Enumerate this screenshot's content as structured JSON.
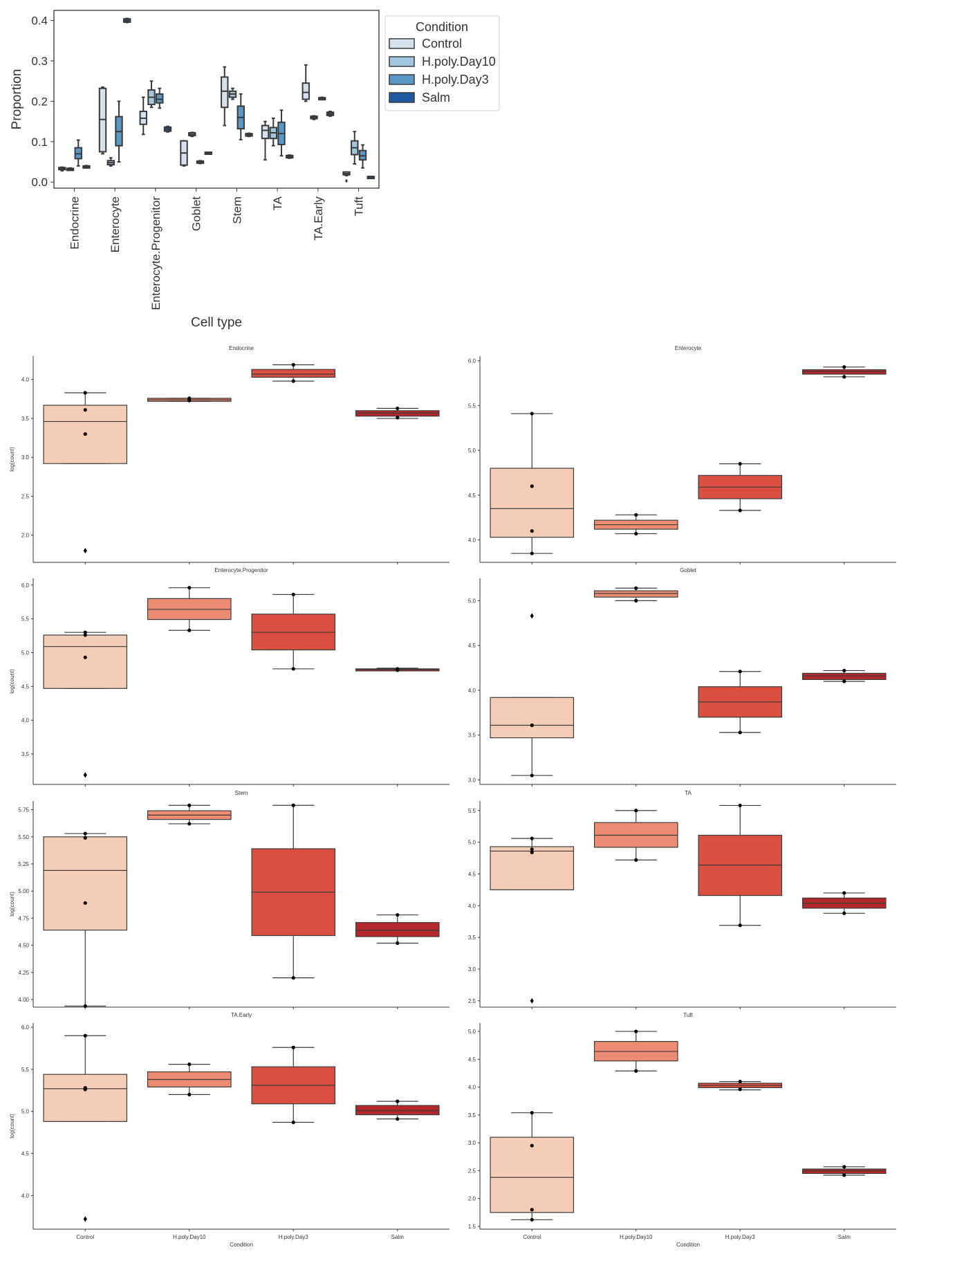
{
  "chart_data": [
    {
      "type": "box",
      "id": "proportion-overview",
      "title": "",
      "xlabel": "Cell type",
      "ylabel": "Proportion",
      "ylim": [
        -0.015,
        0.425
      ],
      "yticks": [
        "0.0",
        "0.1",
        "0.2",
        "0.3",
        "0.4"
      ],
      "categories": [
        "Endocrine",
        "Enterocyte",
        "Enterocyte.Progenitor",
        "Goblet",
        "Stem",
        "TA",
        "TA.Early",
        "Tuft"
      ],
      "legend": {
        "title": "Condition",
        "placement": "right"
      },
      "series": [
        {
          "name": "Control",
          "color": "#d4e1ef",
          "boxes": [
            {
              "q1": 0.031,
              "med": 0.033,
              "q3": 0.036,
              "lo": 0.028,
              "hi": 0.037,
              "outliers": []
            },
            {
              "q1": 0.075,
              "med": 0.155,
              "q3": 0.232,
              "lo": 0.07,
              "hi": 0.235,
              "outliers": []
            },
            {
              "q1": 0.143,
              "med": 0.158,
              "q3": 0.175,
              "lo": 0.118,
              "hi": 0.21,
              "outliers": []
            },
            {
              "q1": 0.042,
              "med": 0.072,
              "q3": 0.102,
              "lo": 0.04,
              "hi": 0.102,
              "outliers": []
            },
            {
              "q1": 0.185,
              "med": 0.225,
              "q3": 0.26,
              "lo": 0.14,
              "hi": 0.285,
              "outliers": []
            },
            {
              "q1": 0.108,
              "med": 0.128,
              "q3": 0.14,
              "lo": 0.055,
              "hi": 0.15,
              "outliers": []
            },
            {
              "q1": 0.205,
              "med": 0.222,
              "q3": 0.245,
              "lo": 0.2,
              "hi": 0.29,
              "outliers": []
            },
            {
              "q1": 0.018,
              "med": 0.021,
              "q3": 0.025,
              "lo": 0.016,
              "hi": 0.025,
              "outliers": [
                0.003
              ]
            }
          ]
        },
        {
          "name": "H.poly.Day10",
          "color": "#a1c6dd",
          "boxes": [
            {
              "q1": 0.031,
              "med": 0.032,
              "q3": 0.034,
              "lo": 0.03,
              "hi": 0.035,
              "outliers": []
            },
            {
              "q1": 0.043,
              "med": 0.048,
              "q3": 0.053,
              "lo": 0.04,
              "hi": 0.06,
              "outliers": []
            },
            {
              "q1": 0.192,
              "med": 0.21,
              "q3": 0.228,
              "lo": 0.185,
              "hi": 0.25,
              "outliers": []
            },
            {
              "q1": 0.115,
              "med": 0.118,
              "q3": 0.122,
              "lo": 0.113,
              "hi": 0.123,
              "outliers": []
            },
            {
              "q1": 0.21,
              "med": 0.218,
              "q3": 0.225,
              "lo": 0.205,
              "hi": 0.232,
              "outliers": []
            },
            {
              "q1": 0.108,
              "med": 0.122,
              "q3": 0.135,
              "lo": 0.09,
              "hi": 0.158,
              "outliers": []
            },
            {
              "q1": 0.157,
              "med": 0.16,
              "q3": 0.163,
              "lo": 0.155,
              "hi": 0.164,
              "outliers": []
            },
            {
              "q1": 0.068,
              "med": 0.085,
              "q3": 0.102,
              "lo": 0.045,
              "hi": 0.125,
              "outliers": []
            }
          ]
        },
        {
          "name": "H.poly.Day3",
          "color": "#5997c6",
          "boxes": [
            {
              "q1": 0.058,
              "med": 0.07,
              "q3": 0.085,
              "lo": 0.04,
              "hi": 0.104,
              "outliers": []
            },
            {
              "q1": 0.09,
              "med": 0.125,
              "q3": 0.162,
              "lo": 0.05,
              "hi": 0.2,
              "outliers": []
            },
            {
              "q1": 0.196,
              "med": 0.205,
              "q3": 0.218,
              "lo": 0.183,
              "hi": 0.232,
              "outliers": []
            },
            {
              "q1": 0.047,
              "med": 0.049,
              "q3": 0.052,
              "lo": 0.046,
              "hi": 0.053,
              "outliers": []
            },
            {
              "q1": 0.132,
              "med": 0.16,
              "q3": 0.188,
              "lo": 0.105,
              "hi": 0.218,
              "outliers": []
            },
            {
              "q1": 0.093,
              "med": 0.12,
              "q3": 0.148,
              "lo": 0.065,
              "hi": 0.178,
              "outliers": []
            },
            {
              "q1": 0.205,
              "med": 0.207,
              "q3": 0.209,
              "lo": 0.204,
              "hi": 0.21,
              "outliers": []
            },
            {
              "q1": 0.055,
              "med": 0.065,
              "q3": 0.078,
              "lo": 0.035,
              "hi": 0.092,
              "outliers": []
            }
          ]
        },
        {
          "name": "Salm",
          "color": "#1f5a9e",
          "boxes": [
            {
              "q1": 0.036,
              "med": 0.038,
              "q3": 0.04,
              "lo": 0.035,
              "hi": 0.041,
              "outliers": []
            },
            {
              "q1": 0.396,
              "med": 0.4,
              "q3": 0.404,
              "lo": 0.395,
              "hi": 0.405,
              "outliers": []
            },
            {
              "q1": 0.126,
              "med": 0.131,
              "q3": 0.136,
              "lo": 0.124,
              "hi": 0.138,
              "outliers": []
            },
            {
              "q1": 0.072,
              "med": 0.073,
              "q3": 0.074,
              "lo": 0.072,
              "hi": 0.074,
              "outliers": []
            },
            {
              "q1": 0.114,
              "med": 0.117,
              "q3": 0.12,
              "lo": 0.113,
              "hi": 0.121,
              "outliers": []
            },
            {
              "q1": 0.06,
              "med": 0.063,
              "q3": 0.066,
              "lo": 0.059,
              "hi": 0.067,
              "outliers": []
            },
            {
              "q1": 0.165,
              "med": 0.169,
              "q3": 0.173,
              "lo": 0.163,
              "hi": 0.175,
              "outliers": []
            },
            {
              "q1": 0.012,
              "med": 0.013,
              "q3": 0.014,
              "lo": 0.012,
              "hi": 0.014,
              "outliers": []
            }
          ]
        }
      ]
    },
    {
      "type": "box-grid",
      "id": "logcount-by-condition",
      "xlabel": "Condition",
      "ylabel": "log(count)",
      "categories": [
        "Control",
        "H.poly.Day10",
        "H.poly.Day3",
        "Salm"
      ],
      "colors": [
        "#f4cdb8",
        "#ec8c72",
        "#db4f41",
        "#b4282b"
      ],
      "panels": [
        {
          "title": "Endocrine",
          "ylim": [
            1.65,
            4.3
          ],
          "yticks": [
            "2.0",
            "2.5",
            "3.0",
            "3.5",
            "4.0"
          ],
          "boxes": [
            {
              "q1": 2.92,
              "med": 3.46,
              "q3": 3.67,
              "lo": 2.92,
              "hi": 3.83,
              "points": [
                3.83,
                3.61,
                3.3
              ],
              "outliers": [
                1.8
              ]
            },
            {
              "q1": 3.72,
              "med": 3.74,
              "q3": 3.76,
              "lo": 3.72,
              "hi": 3.76,
              "points": [
                3.76,
                3.73
              ],
              "outliers": []
            },
            {
              "q1": 4.03,
              "med": 4.07,
              "q3": 4.13,
              "lo": 3.98,
              "hi": 4.19,
              "points": [
                4.19,
                3.98
              ],
              "outliers": []
            },
            {
              "q1": 3.53,
              "med": 3.57,
              "q3": 3.6,
              "lo": 3.5,
              "hi": 3.63,
              "points": [
                3.63,
                3.51
              ],
              "outliers": []
            }
          ]
        },
        {
          "title": "Enterocyte",
          "ylim": [
            3.75,
            6.05
          ],
          "yticks": [
            "4.0",
            "4.5",
            "5.0",
            "5.5",
            "6.0"
          ],
          "boxes": [
            {
              "q1": 4.03,
              "med": 4.35,
              "q3": 4.8,
              "lo": 3.85,
              "hi": 5.41,
              "points": [
                5.41,
                4.6,
                4.1,
                3.85
              ],
              "outliers": []
            },
            {
              "q1": 4.12,
              "med": 4.17,
              "q3": 4.22,
              "lo": 4.07,
              "hi": 4.28,
              "points": [
                4.28,
                4.07
              ],
              "outliers": []
            },
            {
              "q1": 4.46,
              "med": 4.59,
              "q3": 4.72,
              "lo": 4.33,
              "hi": 4.85,
              "points": [
                4.85,
                4.33
              ],
              "outliers": []
            },
            {
              "q1": 5.85,
              "med": 5.88,
              "q3": 5.9,
              "lo": 5.82,
              "hi": 5.93,
              "points": [
                5.93,
                5.82
              ],
              "outliers": []
            }
          ]
        },
        {
          "title": "Enterocyte.Progenitor",
          "ylim": [
            3.05,
            6.1
          ],
          "yticks": [
            "3.5",
            "4.0",
            "4.5",
            "5.0",
            "5.5",
            "6.0"
          ],
          "boxes": [
            {
              "q1": 4.47,
              "med": 5.09,
              "q3": 5.26,
              "lo": 4.47,
              "hi": 5.3,
              "points": [
                5.3,
                5.26,
                4.93
              ],
              "outliers": [
                3.19
              ]
            },
            {
              "q1": 5.49,
              "med": 5.64,
              "q3": 5.8,
              "lo": 5.33,
              "hi": 5.96,
              "points": [
                5.96,
                5.33
              ],
              "outliers": []
            },
            {
              "q1": 5.04,
              "med": 5.3,
              "q3": 5.57,
              "lo": 4.76,
              "hi": 5.86,
              "points": [
                5.86,
                4.76
              ],
              "outliers": []
            },
            {
              "q1": 4.74,
              "med": 4.75,
              "q3": 4.76,
              "lo": 4.73,
              "hi": 4.77,
              "points": [
                4.76,
                4.74
              ],
              "outliers": []
            }
          ]
        },
        {
          "title": "Goblet",
          "ylim": [
            2.95,
            5.25
          ],
          "yticks": [
            "3.0",
            "3.5",
            "4.0",
            "4.5",
            "5.0"
          ],
          "boxes": [
            {
              "q1": 3.47,
              "med": 3.61,
              "q3": 3.92,
              "lo": 3.05,
              "hi": 3.92,
              "points": [
                3.61,
                3.61,
                3.05
              ],
              "outliers": [
                4.83
              ]
            },
            {
              "q1": 5.04,
              "med": 5.08,
              "q3": 5.11,
              "lo": 5.0,
              "hi": 5.14,
              "points": [
                5.14,
                5.0
              ],
              "outliers": []
            },
            {
              "q1": 3.7,
              "med": 3.87,
              "q3": 4.04,
              "lo": 3.53,
              "hi": 4.21,
              "points": [
                4.21,
                3.53
              ],
              "outliers": []
            },
            {
              "q1": 4.12,
              "med": 4.16,
              "q3": 4.19,
              "lo": 4.1,
              "hi": 4.22,
              "points": [
                4.22,
                4.1
              ],
              "outliers": []
            }
          ]
        },
        {
          "title": "Stem",
          "ylim": [
            3.93,
            5.83
          ],
          "yticks": [
            "4.00",
            "4.25",
            "4.50",
            "4.75",
            "5.00",
            "5.25",
            "5.50",
            "5.75"
          ],
          "boxes": [
            {
              "q1": 4.64,
              "med": 5.19,
              "q3": 5.5,
              "lo": 3.94,
              "hi": 5.53,
              "points": [
                5.53,
                5.49,
                4.89,
                3.94
              ],
              "outliers": []
            },
            {
              "q1": 5.66,
              "med": 5.7,
              "q3": 5.74,
              "lo": 5.62,
              "hi": 5.79,
              "points": [
                5.79,
                5.62
              ],
              "outliers": []
            },
            {
              "q1": 4.59,
              "med": 4.99,
              "q3": 5.39,
              "lo": 4.2,
              "hi": 5.79,
              "points": [
                5.79,
                4.2
              ],
              "outliers": []
            },
            {
              "q1": 4.58,
              "med": 4.64,
              "q3": 4.71,
              "lo": 4.52,
              "hi": 4.78,
              "points": [
                4.78,
                4.52
              ],
              "outliers": []
            }
          ]
        },
        {
          "title": "TA",
          "ylim": [
            2.4,
            5.65
          ],
          "yticks": [
            "2.5",
            "3.0",
            "3.5",
            "4.0",
            "4.5",
            "5.0",
            "5.5"
          ],
          "boxes": [
            {
              "q1": 4.25,
              "med": 4.86,
              "q3": 4.93,
              "lo": 4.25,
              "hi": 5.06,
              "points": [
                5.06,
                4.89,
                4.84
              ],
              "outliers": [
                2.5
              ]
            },
            {
              "q1": 4.92,
              "med": 5.11,
              "q3": 5.31,
              "lo": 4.72,
              "hi": 5.5,
              "points": [
                5.5,
                4.72
              ],
              "outliers": []
            },
            {
              "q1": 4.16,
              "med": 4.64,
              "q3": 5.11,
              "lo": 3.69,
              "hi": 5.58,
              "points": [
                5.58,
                3.69
              ],
              "outliers": []
            },
            {
              "q1": 3.96,
              "med": 4.04,
              "q3": 4.12,
              "lo": 3.88,
              "hi": 4.2,
              "points": [
                4.2,
                3.88
              ],
              "outliers": []
            }
          ]
        },
        {
          "title": "TA.Early",
          "ylim": [
            3.6,
            6.05
          ],
          "yticks": [
            "4.0",
            "4.5",
            "5.0",
            "5.5",
            "6.0"
          ],
          "boxes": [
            {
              "q1": 4.88,
              "med": 5.27,
              "q3": 5.44,
              "lo": 4.88,
              "hi": 5.9,
              "points": [
                5.9,
                5.28,
                5.26
              ],
              "outliers": [
                3.72
              ]
            },
            {
              "q1": 5.29,
              "med": 5.38,
              "q3": 5.47,
              "lo": 5.2,
              "hi": 5.56,
              "points": [
                5.56,
                5.2
              ],
              "outliers": []
            },
            {
              "q1": 5.09,
              "med": 5.31,
              "q3": 5.53,
              "lo": 4.87,
              "hi": 5.76,
              "points": [
                5.76,
                4.87
              ],
              "outliers": []
            },
            {
              "q1": 4.96,
              "med": 5.01,
              "q3": 5.07,
              "lo": 4.91,
              "hi": 5.12,
              "points": [
                5.12,
                4.91
              ],
              "outliers": []
            }
          ]
        },
        {
          "title": "Tuft",
          "ylim": [
            1.45,
            5.15
          ],
          "yticks": [
            "1.5",
            "2.0",
            "2.5",
            "3.0",
            "3.5",
            "4.0",
            "4.5",
            "5.0"
          ],
          "boxes": [
            {
              "q1": 1.75,
              "med": 2.38,
              "q3": 3.1,
              "lo": 1.62,
              "hi": 3.54,
              "points": [
                3.54,
                2.95,
                1.8,
                1.62
              ],
              "outliers": []
            },
            {
              "q1": 4.47,
              "med": 4.64,
              "q3": 4.82,
              "lo": 4.29,
              "hi": 5.0,
              "points": [
                5.0,
                4.29
              ],
              "outliers": []
            },
            {
              "q1": 3.99,
              "med": 4.03,
              "q3": 4.07,
              "lo": 3.95,
              "hi": 4.1,
              "points": [
                4.1,
                3.96
              ],
              "outliers": []
            },
            {
              "q1": 2.45,
              "med": 2.5,
              "q3": 2.53,
              "lo": 2.42,
              "hi": 2.57,
              "points": [
                2.57,
                2.42
              ],
              "outliers": []
            }
          ]
        }
      ]
    }
  ]
}
